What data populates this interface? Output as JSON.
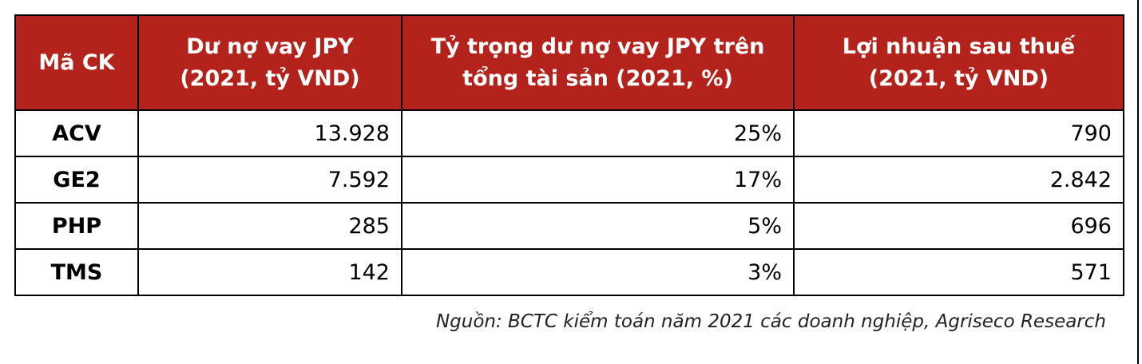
{
  "table": {
    "header": [
      [
        "Mã CK"
      ],
      [
        "Dư nợ vay JPY",
        "(2021, tỷ VND)"
      ],
      [
        "Tỷ trọng dư nợ vay JPY trên",
        "tổng tài sản (2021, %)"
      ],
      [
        "Lợi nhuận sau thuế",
        "(2021, tỷ VND)"
      ]
    ],
    "rows": [
      [
        "ACV",
        "13.928",
        "25%",
        "790"
      ],
      [
        "GE2",
        "7.592",
        "17%",
        "2.842"
      ],
      [
        "PHP",
        "285",
        "5%",
        "696"
      ],
      [
        "TMS",
        "142",
        "3%",
        "571"
      ]
    ]
  },
  "source": "Nguồn: BCTC kiểm toán năm 2021 các doanh nghiệp, Agriseco Research"
}
